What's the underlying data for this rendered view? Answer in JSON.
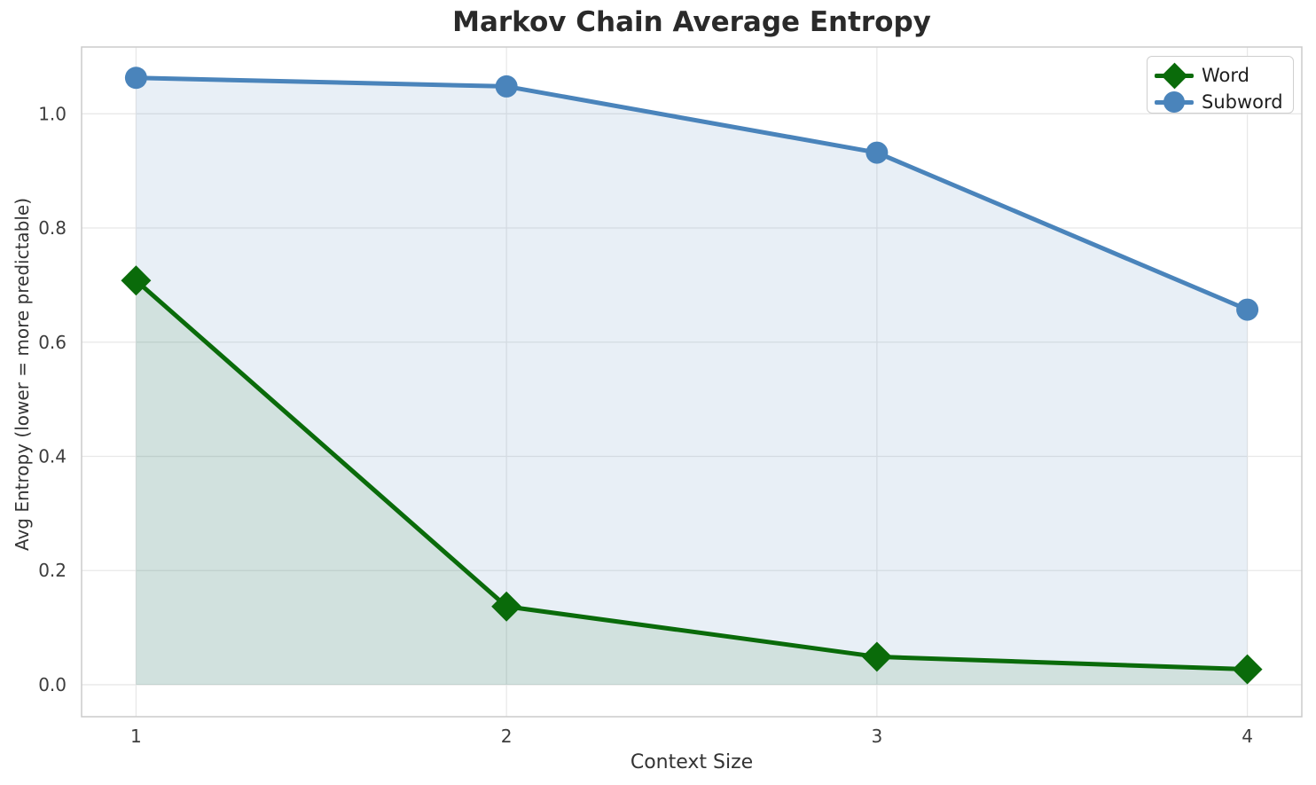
{
  "chart_data": {
    "type": "line",
    "title": "Markov Chain Average Entropy",
    "xlabel": "Context Size",
    "ylabel": "Avg Entropy (lower = more predictable)",
    "x": [
      1,
      2,
      3,
      4
    ],
    "series": [
      {
        "name": "Word",
        "marker": "diamond",
        "color": "#0a6b0a",
        "fill": "rgba(10,107,10,0.10)",
        "values": [
          0.708,
          0.137,
          0.049,
          0.027
        ]
      },
      {
        "name": "Subword",
        "marker": "circle",
        "color": "#4a84bb",
        "fill": "rgba(74,132,187,0.13)",
        "values": [
          1.063,
          1.048,
          0.932,
          0.657
        ]
      }
    ],
    "xticks": [
      "1",
      "2",
      "3",
      "4"
    ],
    "yticks": [
      "0.0",
      "0.2",
      "0.4",
      "0.6",
      "0.8",
      "1.0"
    ],
    "xlim": [
      0.853,
      4.147
    ],
    "ylim": [
      -0.056,
      1.117
    ],
    "grid": true,
    "area_fill_baseline": 0,
    "legend_position": "top-right",
    "colors": {
      "grid": "#e8e8e8",
      "spine": "#cbcbcb",
      "tick_label": "#3d3d3d",
      "title": "#2a2a2a",
      "axis_label": "#333333",
      "background": "#ffffff"
    }
  }
}
